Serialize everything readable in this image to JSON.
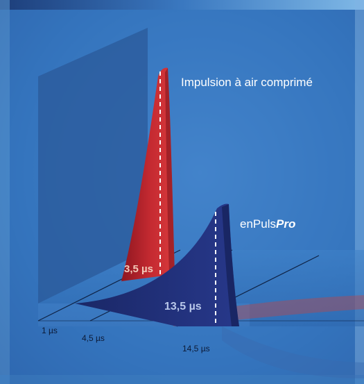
{
  "chart_data": {
    "type": "area",
    "title": "",
    "xlabel": "",
    "ylabel": "",
    "x_ticks": [
      "1 µs",
      "4,5 µs",
      "14,5 µs"
    ],
    "series": [
      {
        "name": "Impulsion à air comprimé",
        "peak_label": "3,5 µs",
        "peak_time_us": 3.5,
        "color": "#b3202b"
      },
      {
        "name_plain": "enPuls",
        "name_emphasis": "Pro",
        "peak_label": "13,5 µs",
        "peak_time_us": 13.5,
        "color": "#1f2f78"
      }
    ],
    "grid": false,
    "legend": "direct labels"
  },
  "colors": {
    "background": "#2f6fb8",
    "panel": "#3c7cc4",
    "label_text": "#ffffff",
    "peak_label_text": "#f2c9b8",
    "peak_label_text_blue": "#b9c8ea"
  }
}
